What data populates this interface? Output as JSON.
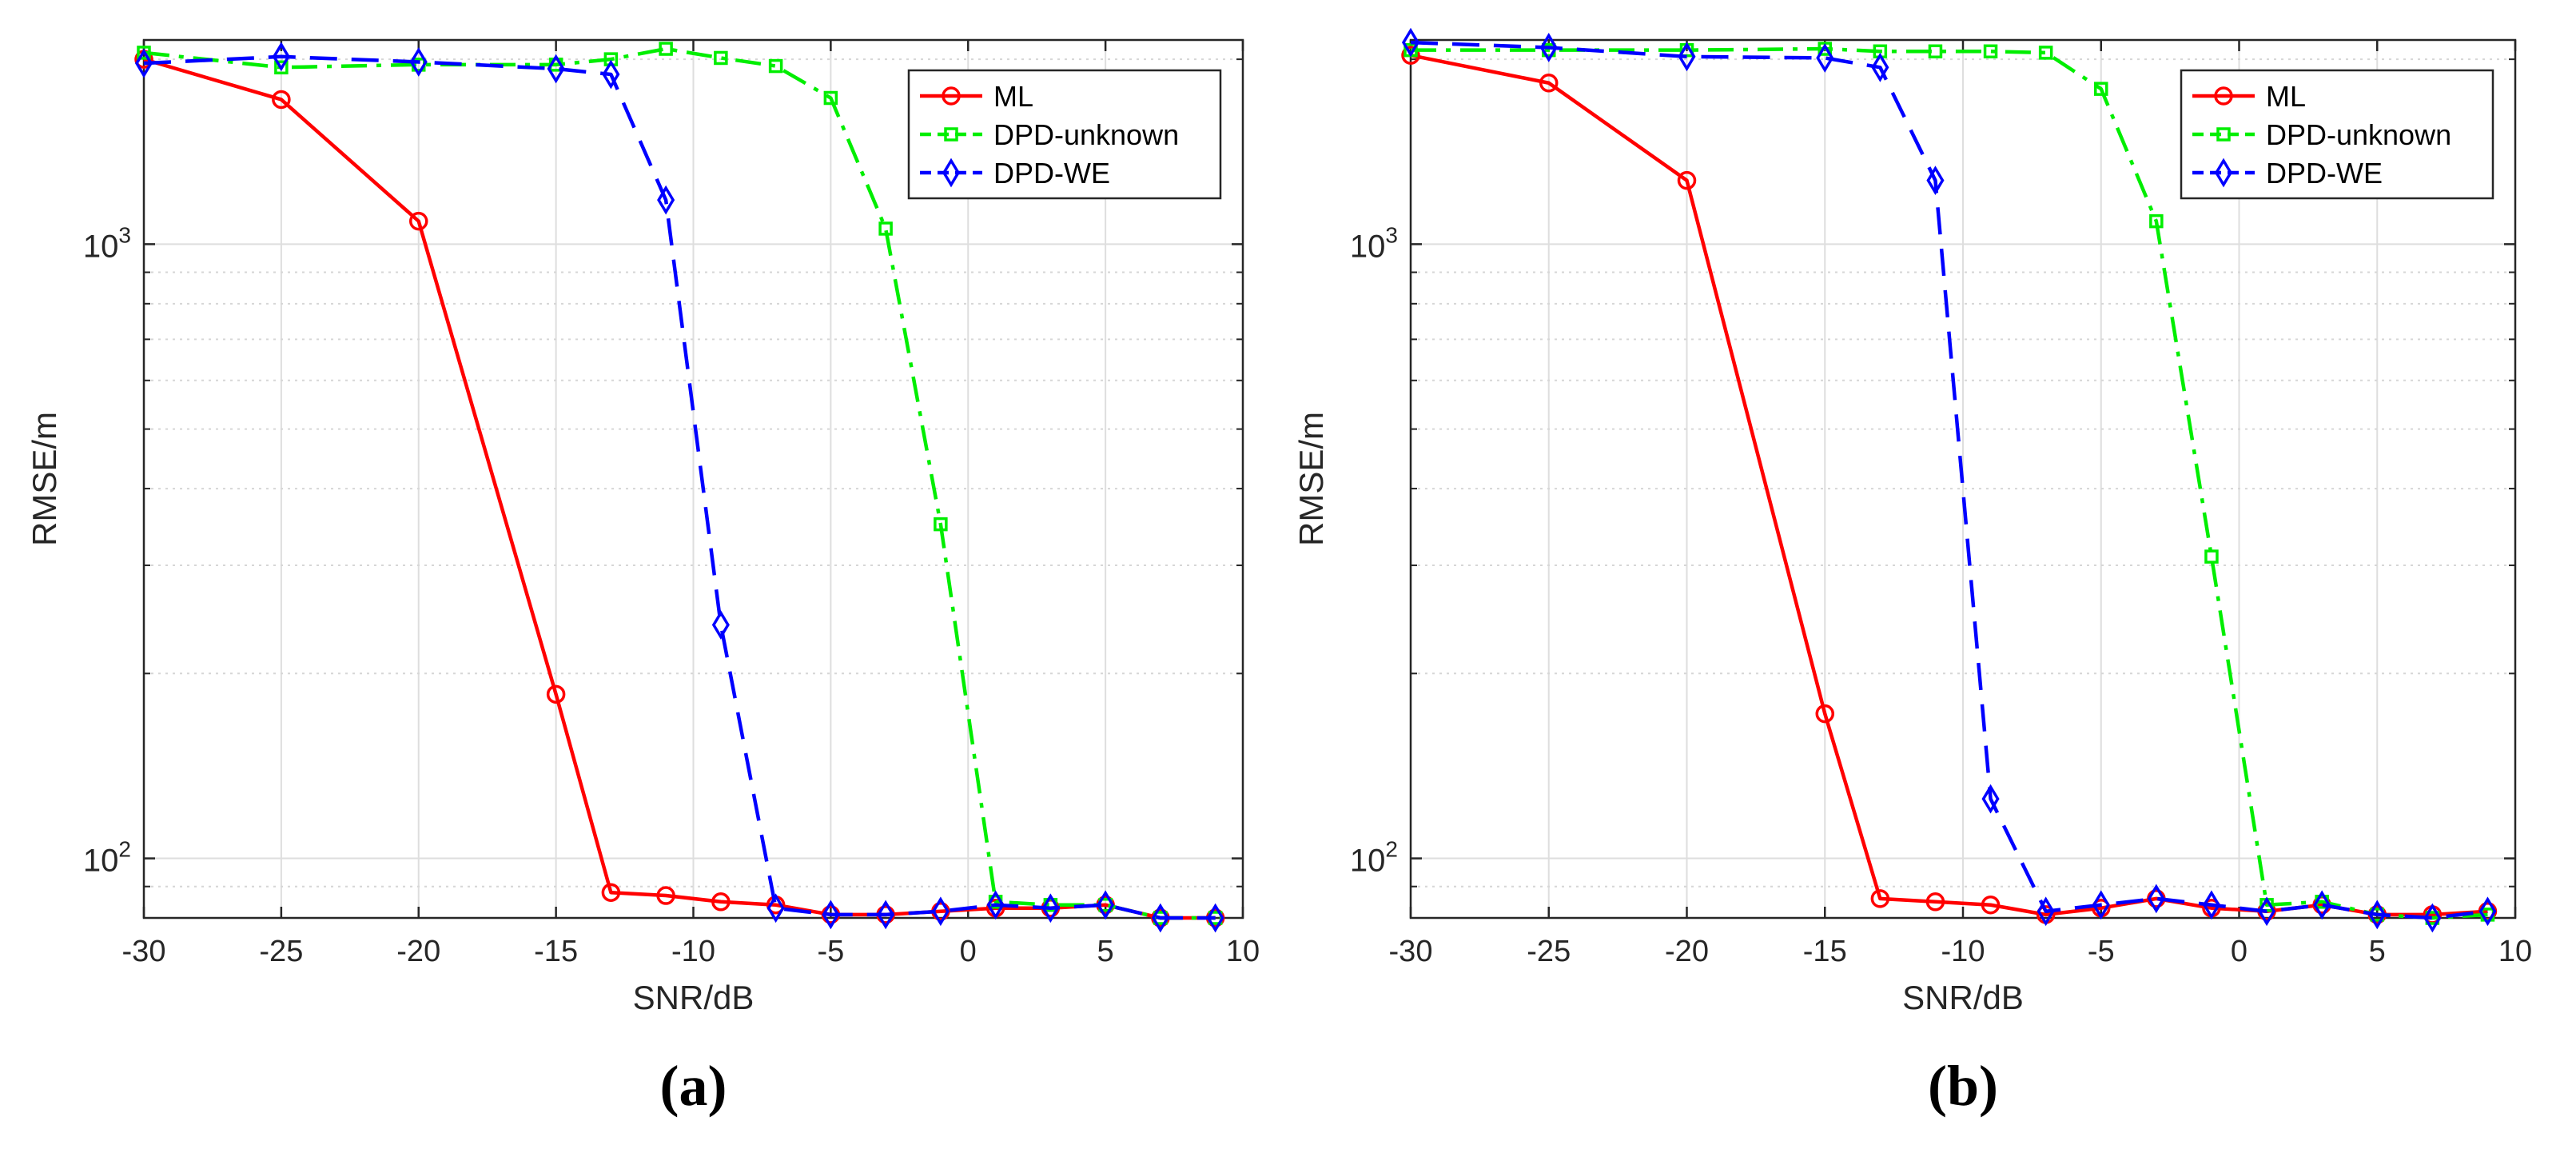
{
  "chart_data": [
    {
      "type": "line",
      "panel_label": "(a)",
      "xlabel": "SNR/dB",
      "ylabel": "RMSE/m",
      "xscale": "linear",
      "yscale": "log",
      "xlim": [
        -30,
        10
      ],
      "ylim": [
        80,
        2150
      ],
      "xticks": [
        -30,
        -25,
        -20,
        -15,
        -10,
        -5,
        0,
        5,
        10
      ],
      "xtick_labels": [
        "-30",
        "-25",
        "-20",
        "-15",
        "-10",
        "-5",
        "0",
        "5",
        "10"
      ],
      "yticks": [
        100,
        1000
      ],
      "ytick_labels": [
        {
          "base": "10",
          "exp": "2"
        },
        {
          "base": "10",
          "exp": "3"
        }
      ],
      "grid": true,
      "legend_position": "top-right",
      "series": [
        {
          "name": "ML",
          "color": "#ff0000",
          "dash": "solid",
          "marker": "circle",
          "x": [
            -30,
            -25,
            -20,
            -15,
            -13,
            -11,
            -9,
            -7,
            -5,
            -3,
            -1,
            1,
            3,
            5,
            7,
            9
          ],
          "y": [
            2000,
            1720,
            1090,
            185,
            88,
            87,
            85,
            84,
            81,
            81,
            82,
            83,
            83,
            84,
            80,
            80
          ]
        },
        {
          "name": "DPD-unknown",
          "color": "#00ee00",
          "dash": "dashdot",
          "marker": "square",
          "x": [
            -30,
            -25,
            -20,
            -15,
            -13,
            -11,
            -9,
            -7,
            -5,
            -3,
            -1,
            1,
            3,
            5,
            7,
            9
          ],
          "y": [
            2050,
            1940,
            1960,
            1960,
            2000,
            2080,
            2010,
            1950,
            1730,
            1060,
            350,
            85,
            84,
            84,
            80,
            80
          ]
        },
        {
          "name": "DPD-WE",
          "color": "#0000ff",
          "dash": "dashed",
          "marker": "diamond",
          "x": [
            -30,
            -25,
            -20,
            -15,
            -13,
            -11,
            -9,
            -7,
            -5,
            -3,
            -1,
            1,
            3,
            5,
            7,
            9
          ],
          "y": [
            1970,
            2020,
            1980,
            1930,
            1890,
            1180,
            240,
            83,
            81,
            81,
            82,
            84,
            83,
            84,
            80,
            80
          ]
        }
      ]
    },
    {
      "type": "line",
      "panel_label": "(b)",
      "xlabel": "SNR/dB",
      "ylabel": "RMSE/m",
      "xscale": "linear",
      "yscale": "log",
      "xlim": [
        -30,
        10
      ],
      "ylim": [
        80,
        2150
      ],
      "xticks": [
        -30,
        -25,
        -20,
        -15,
        -10,
        -5,
        0,
        5,
        10
      ],
      "xtick_labels": [
        "-30",
        "-25",
        "-20",
        "-15",
        "-10",
        "-5",
        "0",
        "5",
        "10"
      ],
      "yticks": [
        100,
        1000
      ],
      "ytick_labels": [
        {
          "base": "10",
          "exp": "2"
        },
        {
          "base": "10",
          "exp": "3"
        }
      ],
      "grid": true,
      "legend_position": "top-right",
      "series": [
        {
          "name": "ML",
          "color": "#ff0000",
          "dash": "solid",
          "marker": "circle",
          "x": [
            -30,
            -25,
            -20,
            -15,
            -13,
            -11,
            -9,
            -7,
            -5,
            -3,
            -1,
            1,
            3,
            5,
            7,
            9
          ],
          "y": [
            2030,
            1830,
            1270,
            172,
            86,
            85,
            84,
            81,
            83,
            86,
            83,
            82,
            84,
            81,
            81,
            82
          ]
        },
        {
          "name": "DPD-unknown",
          "color": "#00ee00",
          "dash": "dashdot",
          "marker": "square",
          "x": [
            -30,
            -25,
            -20,
            -15,
            -13,
            -11,
            -9,
            -7,
            -5,
            -3,
            -1,
            1,
            3,
            5,
            7,
            9
          ],
          "y": [
            2070,
            2070,
            2070,
            2080,
            2060,
            2060,
            2060,
            2050,
            1790,
            1090,
            310,
            84,
            85,
            81,
            80,
            81
          ]
        },
        {
          "name": "DPD-WE",
          "color": "#0000ff",
          "dash": "dashed",
          "marker": "diamond",
          "x": [
            -30,
            -25,
            -20,
            -15,
            -13,
            -11,
            -9,
            -7,
            -5,
            -3,
            -1,
            1,
            3,
            5,
            7,
            9
          ],
          "y": [
            2130,
            2090,
            2020,
            2010,
            1940,
            1270,
            125,
            82,
            84,
            86,
            84,
            82,
            84,
            81,
            80,
            82
          ]
        }
      ]
    }
  ]
}
